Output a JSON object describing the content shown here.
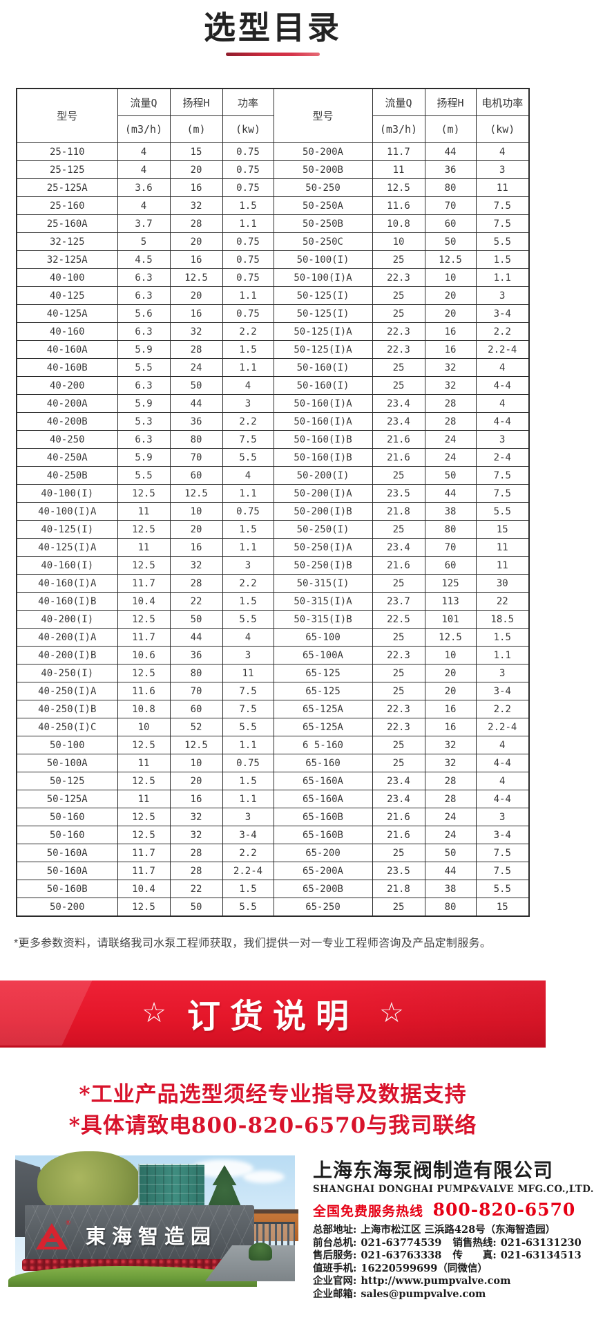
{
  "colors": {
    "accent_red": "#e1152a",
    "underline_red": "#c92a3d",
    "hotline_red": "#e60015",
    "text_dark": "#383838"
  },
  "page": {
    "title": "选型目录",
    "note": "*更多参数资料，请联络我司水泵工程师获取，我们提供一对一专业工程师咨询及产品定制服务。"
  },
  "banner": {
    "star": "☆",
    "title": "订货说明"
  },
  "notices": {
    "line1": "*工业产品选型须经专业指导及数据支持",
    "line2": "*具体请致电800-820-6570与我司联络"
  },
  "table": {
    "headers": {
      "model": "型号",
      "flow": "流量Q",
      "flow_unit": "(m3/h)",
      "head": "扬程H",
      "head_unit": "(m)",
      "power_left": "功率",
      "power_right": "电机功率",
      "power_unit": "(kw)"
    },
    "left_rows": [
      [
        "25-110",
        "4",
        "15",
        "0.75"
      ],
      [
        "25-125",
        "4",
        "20",
        "0.75"
      ],
      [
        "25-125A",
        "3.6",
        "16",
        "0.75"
      ],
      [
        "25-160",
        "4",
        "32",
        "1.5"
      ],
      [
        "25-160A",
        "3.7",
        "28",
        "1.1"
      ],
      [
        "32-125",
        "5",
        "20",
        "0.75"
      ],
      [
        "32-125A",
        "4.5",
        "16",
        "0.75"
      ],
      [
        "40-100",
        "6.3",
        "12.5",
        "0.75"
      ],
      [
        "40-125",
        "6.3",
        "20",
        "1.1"
      ],
      [
        "40-125A",
        "5.6",
        "16",
        "0.75"
      ],
      [
        "40-160",
        "6.3",
        "32",
        "2.2"
      ],
      [
        "40-160A",
        "5.9",
        "28",
        "1.5"
      ],
      [
        "40-160B",
        "5.5",
        "24",
        "1.1"
      ],
      [
        "40-200",
        "6.3",
        "50",
        "4"
      ],
      [
        "40-200A",
        "5.9",
        "44",
        "3"
      ],
      [
        "40-200B",
        "5.3",
        "36",
        "2.2"
      ],
      [
        "40-250",
        "6.3",
        "80",
        "7.5"
      ],
      [
        "40-250A",
        "5.9",
        "70",
        "5.5"
      ],
      [
        "40-250B",
        "5.5",
        "60",
        "4"
      ],
      [
        "40-100(I)",
        "12.5",
        "12.5",
        "1.1"
      ],
      [
        "40-100(I)A",
        "11",
        "10",
        "0.75"
      ],
      [
        "40-125(I)",
        "12.5",
        "20",
        "1.5"
      ],
      [
        "40-125(I)A",
        "11",
        "16",
        "1.1"
      ],
      [
        "40-160(I)",
        "12.5",
        "32",
        "3"
      ],
      [
        "40-160(I)A",
        "11.7",
        "28",
        "2.2"
      ],
      [
        "40-160(I)B",
        "10.4",
        "22",
        "1.5"
      ],
      [
        "40-200(I)",
        "12.5",
        "50",
        "5.5"
      ],
      [
        "40-200(I)A",
        "11.7",
        "44",
        "4"
      ],
      [
        "40-200(I)B",
        "10.6",
        "36",
        "3"
      ],
      [
        "40-250(I)",
        "12.5",
        "80",
        "11"
      ],
      [
        "40-250(I)A",
        "11.6",
        "70",
        "7.5"
      ],
      [
        "40-250(I)B",
        "10.8",
        "60",
        "7.5"
      ],
      [
        "40-250(I)C",
        "10",
        "52",
        "5.5"
      ],
      [
        "50-100",
        "12.5",
        "12.5",
        "1.1"
      ],
      [
        "50-100A",
        "11",
        "10",
        "0.75"
      ],
      [
        "50-125",
        "12.5",
        "20",
        "1.5"
      ],
      [
        "50-125A",
        "11",
        "16",
        "1.1"
      ],
      [
        "50-160",
        "12.5",
        "32",
        "3"
      ],
      [
        "50-160",
        "12.5",
        "32",
        "3-4"
      ],
      [
        "50-160A",
        "11.7",
        "28",
        "2.2"
      ],
      [
        "50-160A",
        "11.7",
        "28",
        "2.2-4"
      ],
      [
        "50-160B",
        "10.4",
        "22",
        "1.5"
      ],
      [
        "50-200",
        "12.5",
        "50",
        "5.5"
      ]
    ],
    "right_rows": [
      [
        "50-200A",
        "11.7",
        "44",
        "4"
      ],
      [
        "50-200B",
        "11",
        "36",
        "3"
      ],
      [
        "50-250",
        "12.5",
        "80",
        "11"
      ],
      [
        "50-250A",
        "11.6",
        "70",
        "7.5"
      ],
      [
        "50-250B",
        "10.8",
        "60",
        "7.5"
      ],
      [
        "50-250C",
        "10",
        "50",
        "5.5"
      ],
      [
        "50-100(I)",
        "25",
        "12.5",
        "1.5"
      ],
      [
        "50-100(I)A",
        "22.3",
        "10",
        "1.1"
      ],
      [
        "50-125(I)",
        "25",
        "20",
        "3"
      ],
      [
        "50-125(I)",
        "25",
        "20",
        "3-4"
      ],
      [
        "50-125(I)A",
        "22.3",
        "16",
        "2.2"
      ],
      [
        "50-125(I)A",
        "22.3",
        "16",
        "2.2-4"
      ],
      [
        "50-160(I)",
        "25",
        "32",
        "4"
      ],
      [
        "50-160(I)",
        "25",
        "32",
        "4-4"
      ],
      [
        "50-160(I)A",
        "23.4",
        "28",
        "4"
      ],
      [
        "50-160(I)A",
        "23.4",
        "28",
        "4-4"
      ],
      [
        "50-160(I)B",
        "21.6",
        "24",
        "3"
      ],
      [
        "50-160(I)B",
        "21.6",
        "24",
        "2-4"
      ],
      [
        "50-200(I)",
        "25",
        "50",
        "7.5"
      ],
      [
        "50-200(I)A",
        "23.5",
        "44",
        "7.5"
      ],
      [
        "50-200(I)B",
        "21.8",
        "38",
        "5.5"
      ],
      [
        "50-250(I)",
        "25",
        "80",
        "15"
      ],
      [
        "50-250(I)A",
        "23.4",
        "70",
        "11"
      ],
      [
        "50-250(I)B",
        "21.6",
        "60",
        "11"
      ],
      [
        "50-315(I)",
        "25",
        "125",
        "30"
      ],
      [
        "50-315(I)A",
        "23.7",
        "113",
        "22"
      ],
      [
        "50-315(I)B",
        "22.5",
        "101",
        "18.5"
      ],
      [
        "65-100",
        "25",
        "12.5",
        "1.5"
      ],
      [
        "65-100A",
        "22.3",
        "10",
        "1.1"
      ],
      [
        "65-125",
        "25",
        "20",
        "3"
      ],
      [
        "65-125",
        "25",
        "20",
        "3-4"
      ],
      [
        "65-125A",
        "22.3",
        "16",
        "2.2"
      ],
      [
        "65-125A",
        "22.3",
        "16",
        "2.2-4"
      ],
      [
        "6 5-160",
        "25",
        "32",
        "4"
      ],
      [
        "65-160",
        "25",
        "32",
        "4-4"
      ],
      [
        "65-160A",
        "23.4",
        "28",
        "4"
      ],
      [
        "65-160A",
        "23.4",
        "28",
        "4-4"
      ],
      [
        "65-160B",
        "21.6",
        "24",
        "3"
      ],
      [
        "65-160B",
        "21.6",
        "24",
        "3-4"
      ],
      [
        "65-200",
        "25",
        "50",
        "7.5"
      ],
      [
        "65-200A",
        "23.5",
        "44",
        "7.5"
      ],
      [
        "65-200B",
        "21.8",
        "38",
        "5.5"
      ],
      [
        "65-250",
        "25",
        "80",
        "15"
      ]
    ]
  },
  "footer": {
    "photo": {
      "sign_text": "東海智造园",
      "logo_reg": "®"
    },
    "company_cn": "上海东海泵阀制造有限公司",
    "company_en": "SHANGHAI DONGHAI PUMP&VALVE MFG.CO.,LTD.",
    "hotline_label": "全国免费服务热线",
    "hotline_number": "800-820-6570",
    "contacts": [
      {
        "label": "总部地址:",
        "value": "上海市松江区 三浜路428号（东海智造园）",
        "interactable": false
      },
      {
        "label": "前台总机:",
        "value": "021-63774539",
        "label2": "销售热线:",
        "value2": "021-63131230",
        "interactable": false
      },
      {
        "label": "售后服务:",
        "value": "021-63763338",
        "label2": "传　　真:",
        "value2": "021-63134513",
        "interactable": false
      },
      {
        "label": "值班手机:",
        "value": "16220599699（同微信）",
        "interactable": false
      },
      {
        "label": "企业官网:",
        "value": "http://www.pumpvalve.com",
        "interactable": true
      },
      {
        "label": "企业邮箱:",
        "value": "sales@pumpvalve.com",
        "interactable": true
      }
    ]
  }
}
